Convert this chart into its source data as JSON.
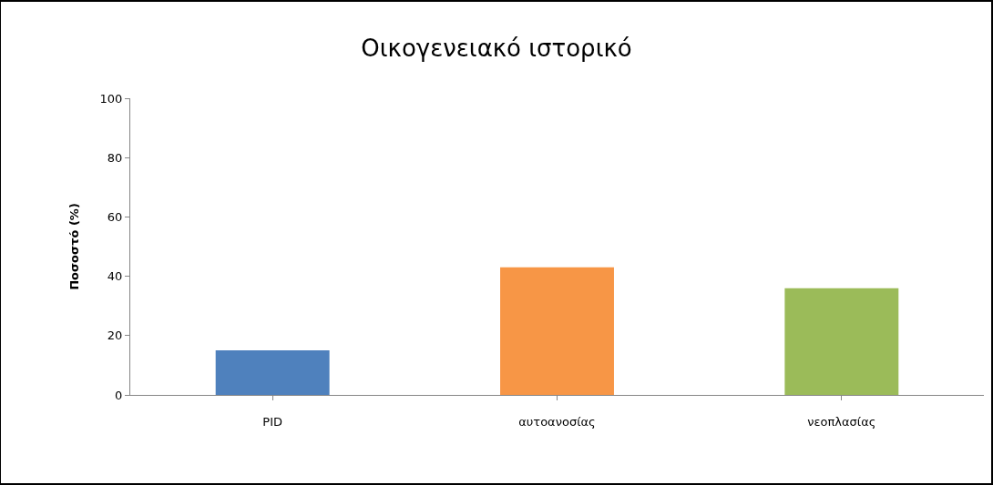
{
  "chart_data": {
    "type": "bar",
    "title": "Οικογενειακό ιστορικό",
    "ylabel": "Ποσοστό (%)",
    "categories": [
      "PID",
      "αυτοανοσίας",
      "νεοπλασίας"
    ],
    "values": [
      15,
      43,
      36
    ],
    "colors": [
      "#4f81bd",
      "#f79646",
      "#9bbb59"
    ],
    "ylim": [
      0,
      100
    ],
    "yticks": [
      0,
      20,
      40,
      60,
      80,
      100
    ]
  }
}
